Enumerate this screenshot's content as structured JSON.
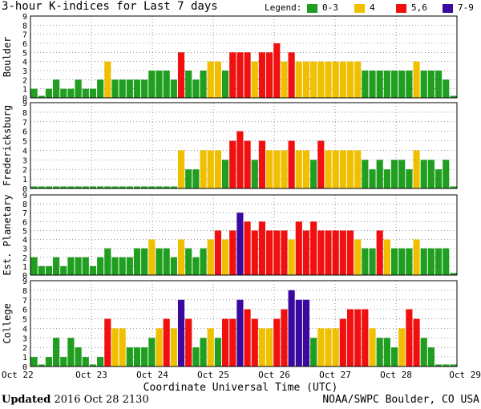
{
  "title": "3-hour K-indices for Last 7 days",
  "legend": {
    "label": "Legend:",
    "items": [
      {
        "text": "0-3",
        "color": "#1f9e1f"
      },
      {
        "text": "4",
        "color": "#f0c000"
      },
      {
        "text": "5,6",
        "color": "#f01010"
      },
      {
        "text": "7-9",
        "color": "#3a0aa0"
      }
    ]
  },
  "footer": {
    "x_axis_title": "Coordinate Universal Time (UTC)",
    "updated_label": "Updated",
    "updated_value": "2016 Oct 28 2130",
    "credit": "NOAA/SWPC Boulder, CO USA"
  },
  "chart_data": [
    {
      "type": "bar",
      "title": "Boulder",
      "ylim": [
        0,
        9
      ],
      "yticks": [
        0,
        1,
        2,
        3,
        4,
        5,
        6,
        7,
        8,
        9
      ],
      "x_ticks": [
        "Oct 22",
        "Oct 23",
        "Oct 24",
        "Oct 25",
        "Oct 26",
        "Oct 27",
        "Oct 28",
        "Oct 29"
      ],
      "values": [
        1,
        0,
        1,
        2,
        1,
        1,
        2,
        1,
        1,
        2,
        4,
        2,
        2,
        2,
        2,
        2,
        3,
        3,
        3,
        2,
        5,
        3,
        2,
        3,
        4,
        4,
        3,
        5,
        5,
        5,
        4,
        5,
        5,
        6,
        4,
        5,
        4,
        4,
        4,
        4,
        4,
        4,
        4,
        4,
        4,
        3,
        3,
        3,
        3,
        3,
        3,
        3,
        4,
        3,
        3,
        3,
        2,
        0
      ]
    },
    {
      "type": "bar",
      "title": "Fredericksburg",
      "ylim": [
        0,
        9
      ],
      "yticks": [
        0,
        1,
        2,
        3,
        4,
        5,
        6,
        7,
        8,
        9
      ],
      "x_ticks": [
        "Oct 22",
        "Oct 23",
        "Oct 24",
        "Oct 25",
        "Oct 26",
        "Oct 27",
        "Oct 28",
        "Oct 29"
      ],
      "values": [
        0,
        0,
        0,
        0,
        0,
        0,
        0,
        0,
        0,
        0,
        0,
        0,
        0,
        0,
        0,
        0,
        0,
        0,
        0,
        0,
        4,
        2,
        2,
        4,
        4,
        4,
        3,
        5,
        6,
        5,
        3,
        5,
        4,
        4,
        4,
        5,
        4,
        4,
        3,
        5,
        4,
        4,
        4,
        4,
        4,
        3,
        2,
        3,
        2,
        3,
        3,
        2,
        4,
        3,
        3,
        2,
        3,
        0
      ]
    },
    {
      "type": "bar",
      "title": "Est. Planetary",
      "ylim": [
        0,
        9
      ],
      "yticks": [
        0,
        1,
        2,
        3,
        4,
        5,
        6,
        7,
        8,
        9
      ],
      "x_ticks": [
        "Oct 22",
        "Oct 23",
        "Oct 24",
        "Oct 25",
        "Oct 26",
        "Oct 27",
        "Oct 28",
        "Oct 29"
      ],
      "values": [
        2,
        1,
        1,
        2,
        1,
        2,
        2,
        2,
        1,
        2,
        3,
        2,
        2,
        2,
        3,
        3,
        4,
        3,
        3,
        2,
        4,
        3,
        2,
        3,
        4,
        5,
        4,
        5,
        7,
        6,
        5,
        6,
        5,
        5,
        5,
        4,
        6,
        5,
        6,
        5,
        5,
        5,
        5,
        5,
        4,
        3,
        3,
        5,
        4,
        3,
        3,
        3,
        4,
        3,
        3,
        3,
        3,
        0
      ]
    },
    {
      "type": "bar",
      "title": "College",
      "ylim": [
        0,
        9
      ],
      "yticks": [
        0,
        1,
        2,
        3,
        4,
        5,
        6,
        7,
        8,
        9
      ],
      "x_ticks": [
        "Oct 22",
        "Oct 23",
        "Oct 24",
        "Oct 25",
        "Oct 26",
        "Oct 27",
        "Oct 28",
        "Oct 29"
      ],
      "values": [
        1,
        0,
        1,
        3,
        1,
        3,
        2,
        1,
        0,
        1,
        5,
        4,
        4,
        2,
        2,
        2,
        3,
        4,
        5,
        4,
        7,
        5,
        2,
        3,
        4,
        3,
        5,
        5,
        7,
        6,
        5,
        4,
        4,
        5,
        6,
        8,
        7,
        7,
        3,
        4,
        4,
        4,
        5,
        6,
        6,
        6,
        4,
        3,
        3,
        2,
        4,
        6,
        5,
        3,
        2,
        0,
        0,
        0
      ]
    }
  ]
}
